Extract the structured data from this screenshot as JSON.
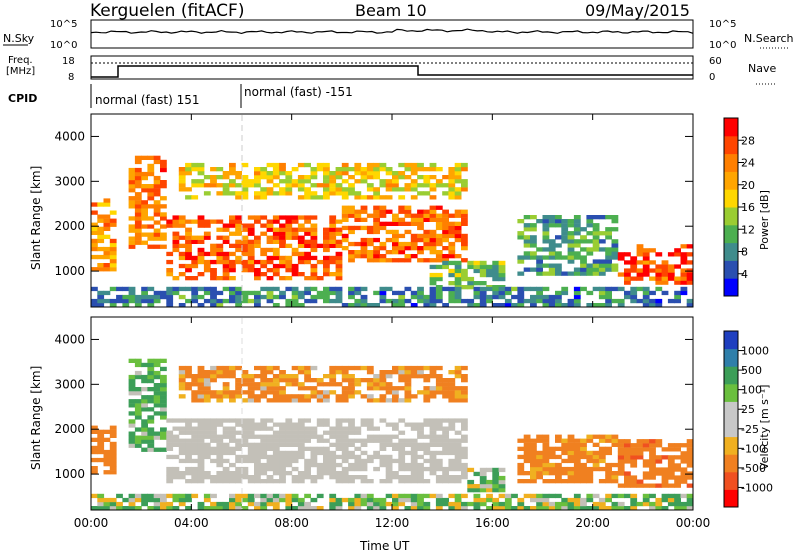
{
  "header": {
    "station": "Kerguelen (fitACF)",
    "beam": "Beam 10",
    "date": "09/May/2015"
  },
  "noise_panel": {
    "left_label": "N.Sky",
    "right_label": "N.Search",
    "left_ticks": [
      "10^5",
      "10^0"
    ],
    "right_ticks": [
      "10^5",
      "10^0"
    ]
  },
  "freq_panel": {
    "label_line1": "Freq.",
    "label_line2": "[MHz]",
    "left_ticks": [
      "18",
      "8"
    ],
    "right_label": "Nave",
    "right_ticks": [
      "60",
      "0"
    ]
  },
  "cpid": {
    "label": "CPID",
    "modes": [
      "normal (fast) 151",
      "normal (fast) -151"
    ]
  },
  "colors": {
    "power_scale": [
      "#0000ff",
      "#2a4fb0",
      "#3f8c8c",
      "#4caf50",
      "#9acd32",
      "#ffd700",
      "#ffa500",
      "#ff7f00",
      "#ff4500",
      "#ff0000"
    ],
    "velocity_scale": [
      "#1f3fbf",
      "#2f7faa",
      "#3c9e58",
      "#6abf3e",
      "#c8c8c8",
      "#c8c8c8",
      "#f0b020",
      "#f08020",
      "#f05020",
      "#ff0000"
    ],
    "ground_scatter": "#c3c0b8"
  },
  "chart_data": [
    {
      "type": "heatmap",
      "panel": "power",
      "ylabel": "Slant Range [km]",
      "ylim": [
        200,
        4500
      ],
      "yticks": [
        "1000",
        "2000",
        "3000",
        "4000"
      ],
      "xlim": [
        "00:00",
        "24:00"
      ],
      "colorbar_label": "Power [dB]",
      "colorbar_range": [
        0,
        32
      ],
      "colorbar_ticks": [
        "4",
        "8",
        "12",
        "16",
        "20",
        "24",
        "28"
      ],
      "regions": [
        {
          "t0": 0.0,
          "t1": 1.0,
          "r0": 1000,
          "r1": 2600,
          "power": 22
        },
        {
          "t0": 1.5,
          "t1": 3.0,
          "r0": 1500,
          "r1": 3500,
          "power": 24
        },
        {
          "t0": 3.0,
          "t1": 10.0,
          "r0": 800,
          "r1": 2200,
          "power": 26
        },
        {
          "t0": 3.5,
          "t1": 15.0,
          "r0": 2600,
          "r1": 3400,
          "power": 18
        },
        {
          "t0": 10.0,
          "t1": 15.0,
          "r0": 1200,
          "r1": 2400,
          "power": 25
        },
        {
          "t0": 13.5,
          "t1": 16.5,
          "r0": 600,
          "r1": 1200,
          "power": 12
        },
        {
          "t0": 17.0,
          "t1": 21.0,
          "r0": 900,
          "r1": 2200,
          "power": 10
        },
        {
          "t0": 21.0,
          "t1": 24.0,
          "r0": 700,
          "r1": 1600,
          "power": 27
        },
        {
          "t0": 0.0,
          "t1": 24.0,
          "r0": 200,
          "r1": 600,
          "power": 8
        }
      ]
    },
    {
      "type": "heatmap",
      "panel": "velocity",
      "ylabel": "Slant Range [km]",
      "ylim": [
        200,
        4500
      ],
      "yticks": [
        "1000",
        "2000",
        "3000",
        "4000"
      ],
      "xlabel": "Time UT",
      "xticks": [
        "00:00",
        "04:00",
        "08:00",
        "12:00",
        "16:00",
        "20:00",
        "00:00"
      ],
      "colorbar_label": "Velocity [m s⁻¹]",
      "colorbar_ticks": [
        "1000",
        "500",
        "100",
        "25",
        "-25",
        "-100",
        "-500",
        "-1000"
      ],
      "regions": [
        {
          "t0": 0.0,
          "t1": 1.0,
          "r0": 1000,
          "r1": 2000,
          "velocity": -300
        },
        {
          "t0": 1.5,
          "t1": 3.0,
          "r0": 1500,
          "r1": 3500,
          "velocity": 150
        },
        {
          "t0": 3.0,
          "t1": 15.0,
          "r0": 800,
          "r1": 2200,
          "velocity": 0
        },
        {
          "t0": 3.5,
          "t1": 15.0,
          "r0": 2600,
          "r1": 3400,
          "velocity": -150
        },
        {
          "t0": 15.0,
          "t1": 16.5,
          "r0": 600,
          "r1": 1100,
          "velocity": 80
        },
        {
          "t0": 17.0,
          "t1": 21.0,
          "r0": 800,
          "r1": 1800,
          "velocity": -200
        },
        {
          "t0": 21.0,
          "t1": 24.0,
          "r0": 700,
          "r1": 1700,
          "velocity": -400
        },
        {
          "t0": 0.0,
          "t1": 24.0,
          "r0": 200,
          "r1": 500,
          "velocity": 50
        }
      ]
    }
  ]
}
